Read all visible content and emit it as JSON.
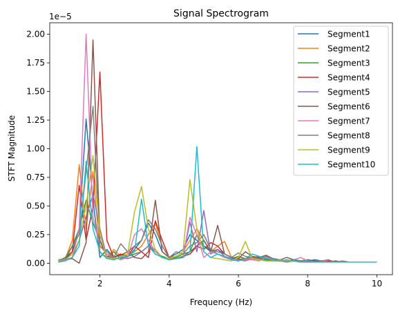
{
  "chart_data": {
    "type": "line",
    "title": "Signal Spectrogram",
    "xlabel": "Frequency (Hz)",
    "ylabel": "STFT Magnitude",
    "y_offset_label": "1e−5",
    "xlim": [
      0.55,
      10.45
    ],
    "ylim": [
      -0.1,
      2.1
    ],
    "xticks": [
      2,
      4,
      6,
      8,
      10
    ],
    "xtick_labels": [
      "2",
      "4",
      "6",
      "8",
      "10"
    ],
    "yticks": [
      0.0,
      0.25,
      0.5,
      0.75,
      1.0,
      1.25,
      1.5,
      1.75,
      2.0
    ],
    "ytick_labels": [
      "0.00",
      "0.25",
      "0.50",
      "0.75",
      "1.00",
      "1.25",
      "1.50",
      "1.75",
      "2.00"
    ],
    "grid": false,
    "legend_position": "upper right",
    "x": [
      0.8,
      1.0,
      1.2,
      1.4,
      1.6,
      1.8,
      2.0,
      2.2,
      2.4,
      2.6,
      2.8,
      3.0,
      3.2,
      3.4,
      3.6,
      3.8,
      4.0,
      4.2,
      4.4,
      4.6,
      4.8,
      5.0,
      5.2,
      5.4,
      5.6,
      5.8,
      6.0,
      6.2,
      6.4,
      6.6,
      6.8,
      7.0,
      7.2,
      7.4,
      7.6,
      7.8,
      8.0,
      8.2,
      8.4,
      8.6,
      8.8,
      9.0,
      9.2,
      9.4,
      9.6,
      9.8,
      10.0
    ],
    "series": [
      {
        "name": "Segment1",
        "color": "#1f77b4",
        "values": [
          0.02,
          0.05,
          0.1,
          0.3,
          1.26,
          0.55,
          0.05,
          0.12,
          0.05,
          0.08,
          0.06,
          0.12,
          0.2,
          0.35,
          0.25,
          0.1,
          0.05,
          0.08,
          0.12,
          0.25,
          0.2,
          0.15,
          0.1,
          0.12,
          0.08,
          0.05,
          0.03,
          0.04,
          0.05,
          0.04,
          0.03,
          0.04,
          0.03,
          0.02,
          0.03,
          0.02,
          0.02,
          0.03,
          0.02,
          0.01,
          0.02,
          0.01,
          0.01,
          0.01,
          0.01,
          0.01,
          0.01
        ]
      },
      {
        "name": "Segment2",
        "color": "#ff7f0e",
        "values": [
          0.03,
          0.04,
          0.2,
          0.86,
          0.3,
          0.8,
          0.1,
          0.05,
          0.12,
          0.06,
          0.08,
          0.1,
          0.15,
          0.25,
          0.35,
          0.15,
          0.05,
          0.06,
          0.1,
          0.2,
          0.3,
          0.2,
          0.1,
          0.15,
          0.19,
          0.05,
          0.04,
          0.03,
          0.05,
          0.06,
          0.04,
          0.03,
          0.03,
          0.02,
          0.02,
          0.02,
          0.03,
          0.02,
          0.02,
          0.01,
          0.02,
          0.01,
          0.01,
          0.01,
          0.01,
          0.01,
          0.01
        ]
      },
      {
        "name": "Segment3",
        "color": "#2ca02c",
        "values": [
          0.01,
          0.03,
          0.15,
          0.3,
          0.55,
          0.35,
          0.2,
          0.05,
          0.1,
          0.04,
          0.06,
          0.08,
          0.1,
          0.15,
          0.1,
          0.06,
          0.04,
          0.05,
          0.08,
          0.1,
          0.25,
          0.15,
          0.12,
          0.08,
          0.05,
          0.04,
          0.06,
          0.04,
          0.03,
          0.05,
          0.03,
          0.02,
          0.03,
          0.02,
          0.02,
          0.01,
          0.02,
          0.01,
          0.02,
          0.01,
          0.01,
          0.01,
          0.01,
          0.01,
          0.01,
          0.01,
          0.01
        ]
      },
      {
        "name": "Segment4",
        "color": "#d62728",
        "values": [
          0.02,
          0.03,
          0.1,
          0.68,
          0.2,
          0.5,
          1.67,
          0.2,
          0.05,
          0.08,
          0.06,
          0.15,
          0.1,
          0.05,
          0.37,
          0.2,
          0.05,
          0.04,
          0.06,
          0.08,
          0.15,
          0.12,
          0.18,
          0.15,
          0.08,
          0.05,
          0.03,
          0.04,
          0.03,
          0.05,
          0.04,
          0.03,
          0.02,
          0.02,
          0.03,
          0.02,
          0.02,
          0.02,
          0.01,
          0.02,
          0.01,
          0.01,
          0.01,
          0.01,
          0.01,
          0.01,
          0.01
        ]
      },
      {
        "name": "Segment5",
        "color": "#9467bd",
        "values": [
          0.01,
          0.02,
          0.05,
          0.2,
          0.4,
          0.6,
          0.3,
          0.05,
          0.04,
          0.05,
          0.04,
          0.06,
          0.1,
          0.15,
          0.12,
          0.05,
          0.03,
          0.04,
          0.05,
          0.36,
          0.1,
          0.46,
          0.08,
          0.12,
          0.06,
          0.04,
          0.03,
          0.02,
          0.04,
          0.03,
          0.02,
          0.02,
          0.02,
          0.01,
          0.02,
          0.01,
          0.01,
          0.01,
          0.01,
          0.01,
          0.01,
          0.01,
          0.01,
          0.01,
          0.01,
          0.01,
          0.01
        ]
      },
      {
        "name": "Segment6",
        "color": "#8c564b",
        "values": [
          0.02,
          0.03,
          0.04,
          0.0,
          0.18,
          1.95,
          0.2,
          0.06,
          0.05,
          0.07,
          0.1,
          0.05,
          0.04,
          0.1,
          0.55,
          0.1,
          0.05,
          0.04,
          0.06,
          0.1,
          0.15,
          0.2,
          0.1,
          0.33,
          0.08,
          0.05,
          0.04,
          0.1,
          0.06,
          0.05,
          0.07,
          0.04,
          0.03,
          0.05,
          0.03,
          0.02,
          0.03,
          0.02,
          0.02,
          0.01,
          0.02,
          0.01,
          0.01,
          0.01,
          0.01,
          0.01,
          0.01
        ]
      },
      {
        "name": "Segment7",
        "color": "#e377c2",
        "values": [
          0.01,
          0.02,
          0.05,
          0.3,
          2.0,
          0.4,
          0.15,
          0.08,
          0.05,
          0.03,
          0.05,
          0.25,
          0.3,
          0.2,
          0.1,
          0.05,
          0.03,
          0.04,
          0.05,
          0.4,
          0.25,
          0.05,
          0.1,
          0.08,
          0.05,
          0.03,
          0.02,
          0.04,
          0.03,
          0.02,
          0.05,
          0.03,
          0.02,
          0.02,
          0.03,
          0.05,
          0.02,
          0.01,
          0.02,
          0.01,
          0.01,
          0.01,
          0.01,
          0.01,
          0.01,
          0.01,
          0.01
        ]
      },
      {
        "name": "Segment8",
        "color": "#7f7f7f",
        "values": [
          0.02,
          0.05,
          0.15,
          0.25,
          0.8,
          1.37,
          0.15,
          0.1,
          0.05,
          0.17,
          0.1,
          0.15,
          0.2,
          0.38,
          0.3,
          0.15,
          0.05,
          0.1,
          0.08,
          0.15,
          0.18,
          0.25,
          0.12,
          0.1,
          0.08,
          0.05,
          0.09,
          0.06,
          0.05,
          0.04,
          0.06,
          0.04,
          0.03,
          0.02,
          0.03,
          0.02,
          0.02,
          0.01,
          0.02,
          0.03,
          0.01,
          0.02,
          0.01,
          0.01,
          0.01,
          0.01,
          0.01
        ]
      },
      {
        "name": "Segment9",
        "color": "#bcbd22",
        "values": [
          0.02,
          0.03,
          0.08,
          0.2,
          0.5,
          0.94,
          0.25,
          0.05,
          0.04,
          0.05,
          0.08,
          0.45,
          0.67,
          0.3,
          0.12,
          0.05,
          0.04,
          0.06,
          0.1,
          0.73,
          0.3,
          0.1,
          0.05,
          0.04,
          0.03,
          0.02,
          0.05,
          0.19,
          0.04,
          0.03,
          0.02,
          0.02,
          0.03,
          0.02,
          0.02,
          0.01,
          0.02,
          0.01,
          0.01,
          0.01,
          0.01,
          0.01,
          0.01,
          0.01,
          0.01,
          0.01,
          0.01
        ]
      },
      {
        "name": "Segment10",
        "color": "#17becf",
        "values": [
          0.01,
          0.03,
          0.05,
          0.15,
          0.89,
          0.3,
          0.1,
          0.04,
          0.03,
          0.05,
          0.06,
          0.1,
          0.56,
          0.15,
          0.08,
          0.05,
          0.03,
          0.04,
          0.05,
          0.1,
          1.02,
          0.1,
          0.05,
          0.08,
          0.06,
          0.03,
          0.02,
          0.04,
          0.08,
          0.06,
          0.04,
          0.03,
          0.02,
          0.03,
          0.02,
          0.01,
          0.02,
          0.01,
          0.01,
          0.01,
          0.01,
          0.01,
          0.01,
          0.01,
          0.01,
          0.01,
          0.01
        ]
      }
    ]
  }
}
